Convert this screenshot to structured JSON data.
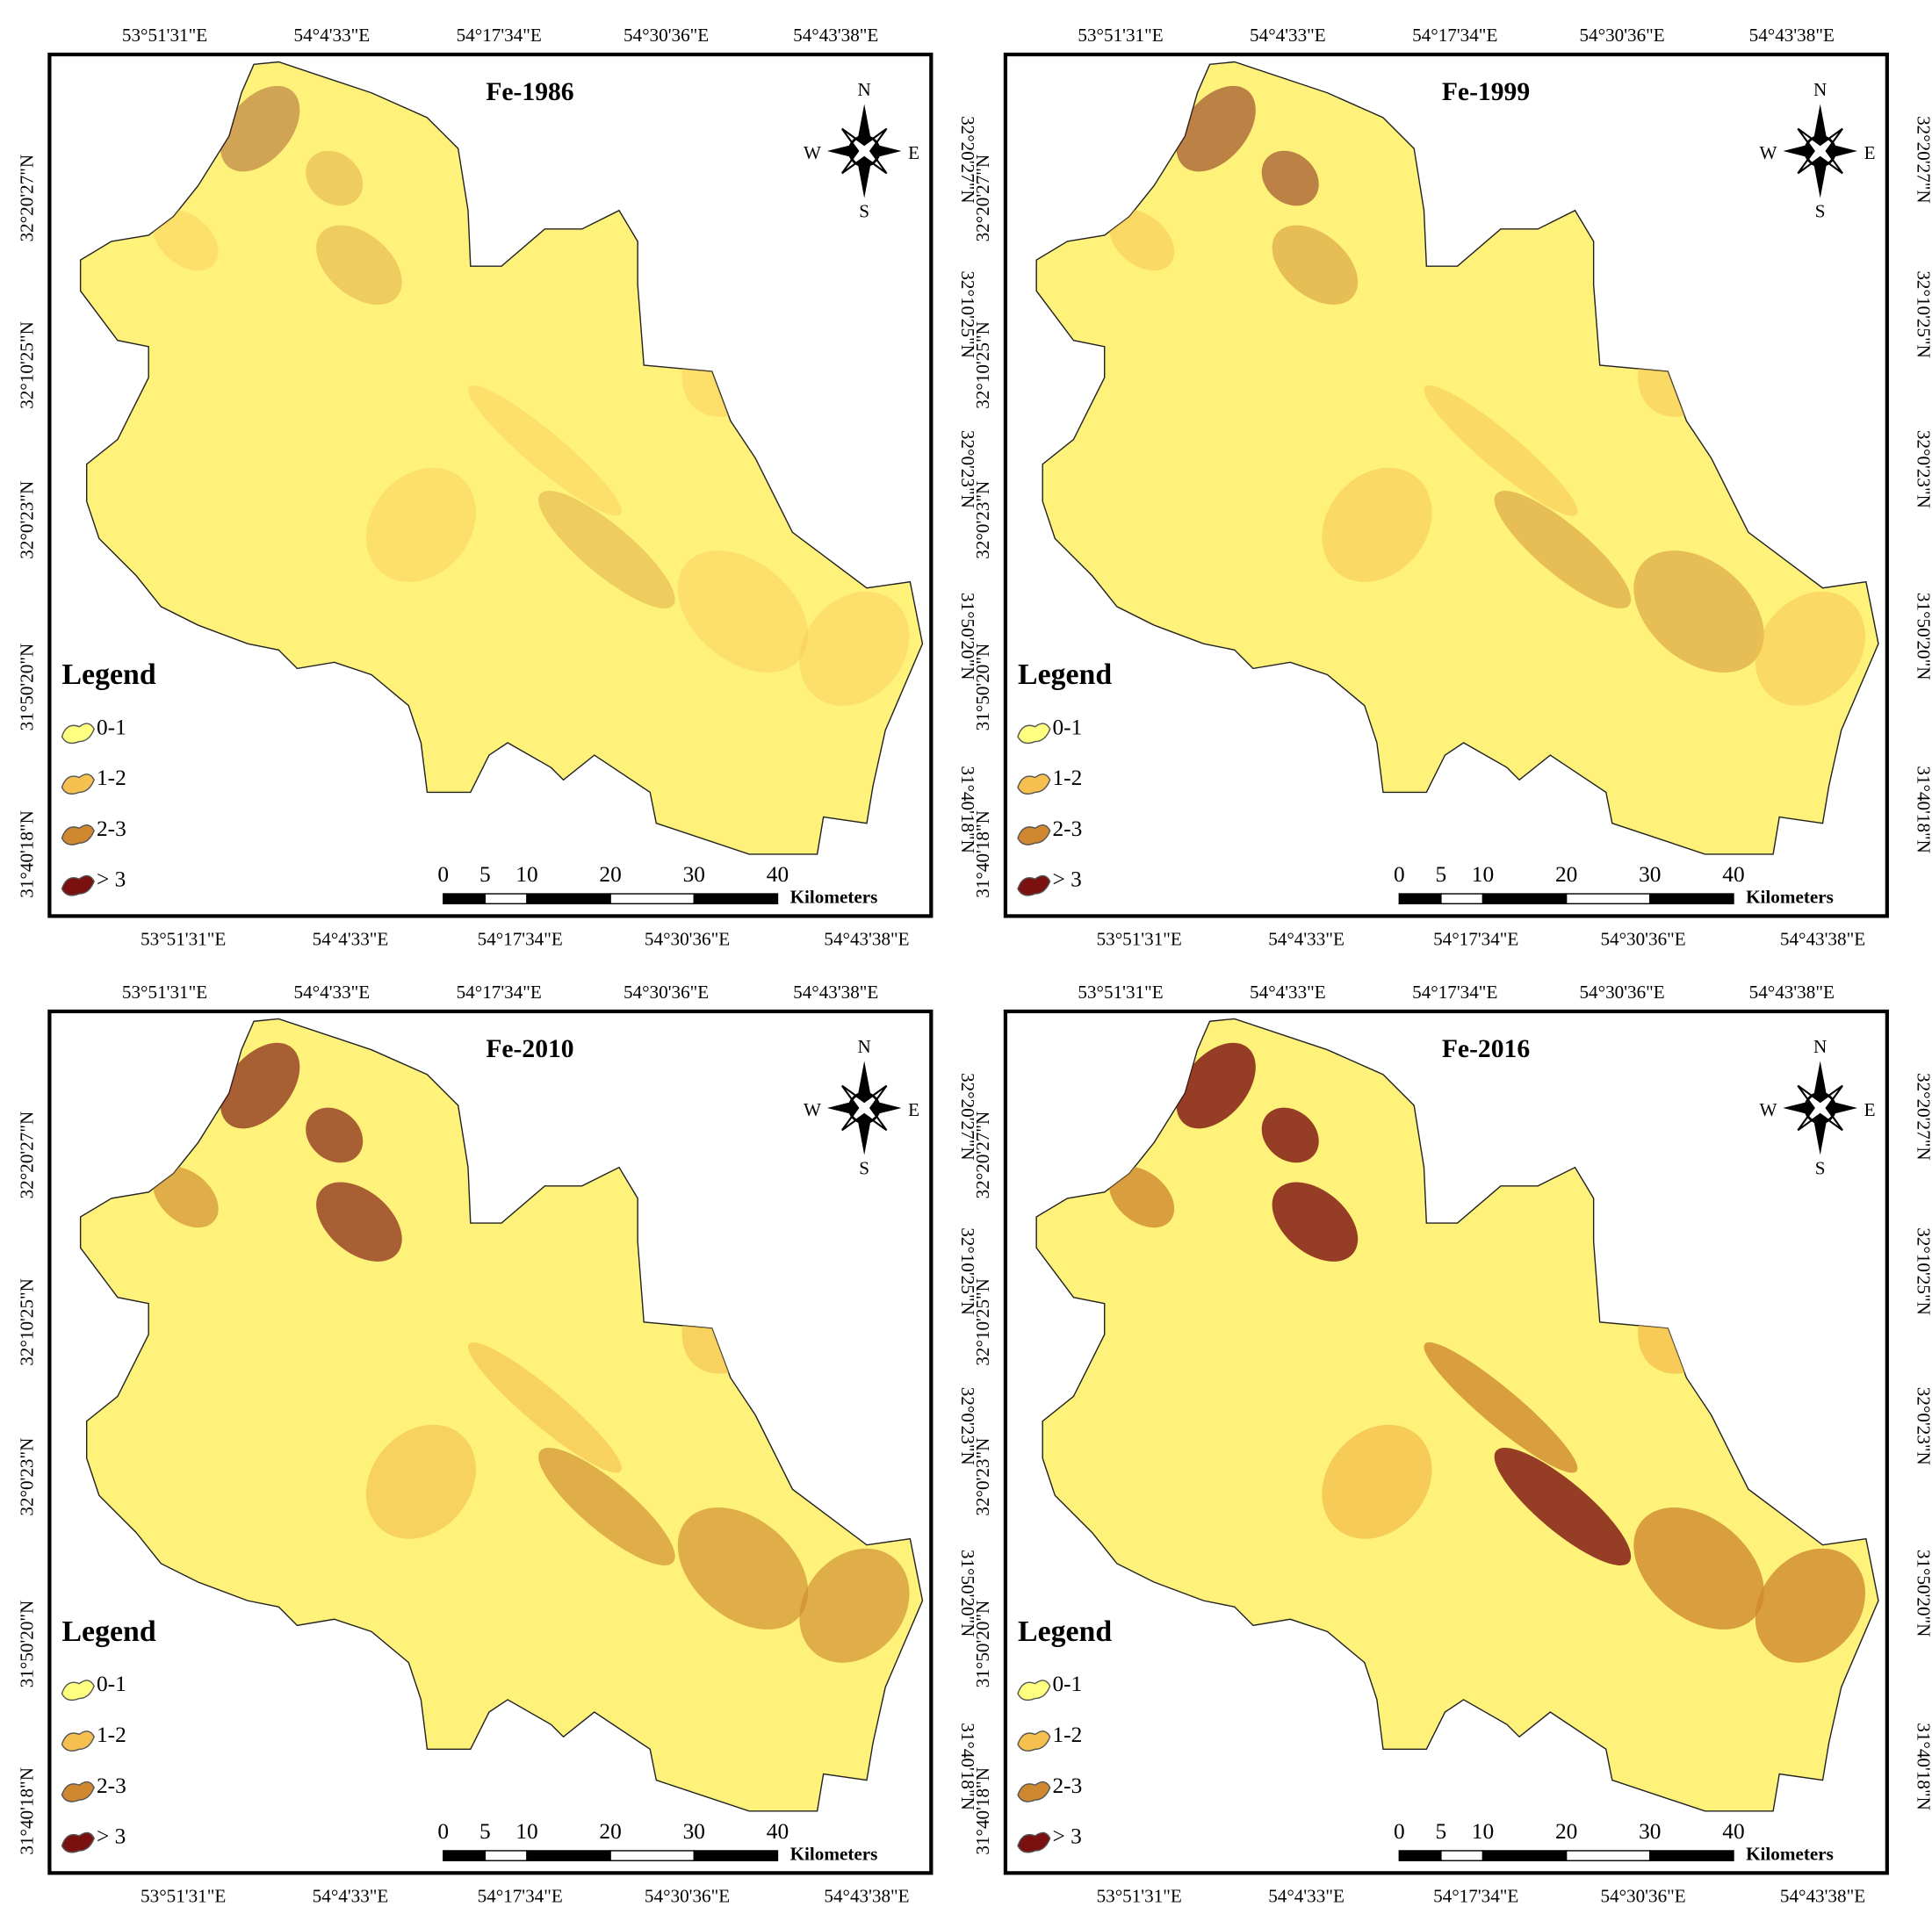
{
  "panels": [
    {
      "title": "Fe-1986"
    },
    {
      "title": "Fe-1999"
    },
    {
      "title": "Fe-2010"
    },
    {
      "title": "Fe-2016"
    }
  ],
  "lon_labels": [
    "53°51'31\"E",
    "54°4'33\"E",
    "54°17'34\"E",
    "54°30'36\"E",
    "54°43'38\"E"
  ],
  "lat_labels": [
    "32°20'27\"N",
    "32°10'25\"N",
    "32°0'23\"N",
    "31°50'20\"N",
    "31°40'18\"N"
  ],
  "legend": {
    "title": "Legend",
    "items": [
      "0-1",
      "1-2",
      "2-3",
      "> 3"
    ]
  },
  "scale_bar": {
    "ticks": [
      0,
      5,
      10,
      20,
      30,
      40
    ],
    "unit": "Kilometers"
  },
  "compass": {
    "north": "N",
    "east": "E",
    "south": "S",
    "west": "W"
  }
}
